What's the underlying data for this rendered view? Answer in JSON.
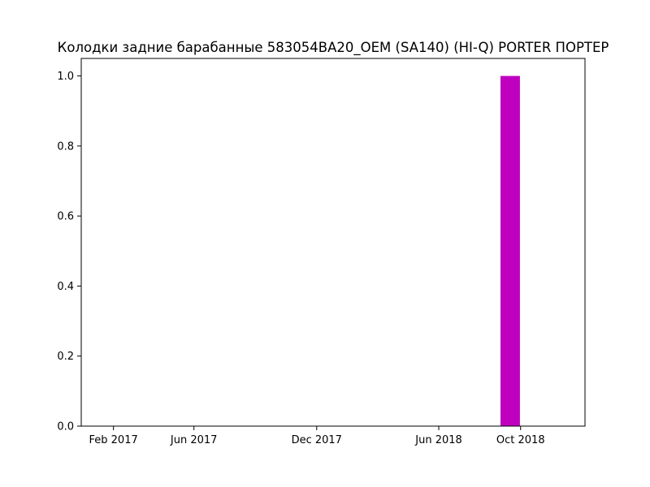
{
  "chart_data": {
    "type": "bar",
    "title": "Колодки задние барабанные 583054BA20_OEM (SA140) (HI-Q) PORTER ПОРТЕР",
    "xlabel": "",
    "ylabel": "",
    "x_type": "date",
    "xlim": [
      "2016-12-15",
      "2019-01-05"
    ],
    "ylim": [
      0,
      1.05
    ],
    "x_ticks": [
      {
        "date": "2017-02-01",
        "label": "Feb 2017"
      },
      {
        "date": "2017-06-01",
        "label": "Jun 2017"
      },
      {
        "date": "2017-12-01",
        "label": "Dec 2017"
      },
      {
        "date": "2018-06-01",
        "label": "Jun 2018"
      },
      {
        "date": "2018-10-01",
        "label": "Oct 2018"
      }
    ],
    "y_ticks": [
      0.0,
      0.2,
      0.4,
      0.6,
      0.8,
      1.0
    ],
    "y_tick_labels": [
      "0.0",
      "0.2",
      "0.4",
      "0.6",
      "0.8",
      "1.0"
    ],
    "bars": [
      {
        "start": "2018-09-01",
        "end": "2018-09-30",
        "value": 1.0
      }
    ],
    "grid": false,
    "colors": {
      "bar": "#bf00bf"
    }
  }
}
